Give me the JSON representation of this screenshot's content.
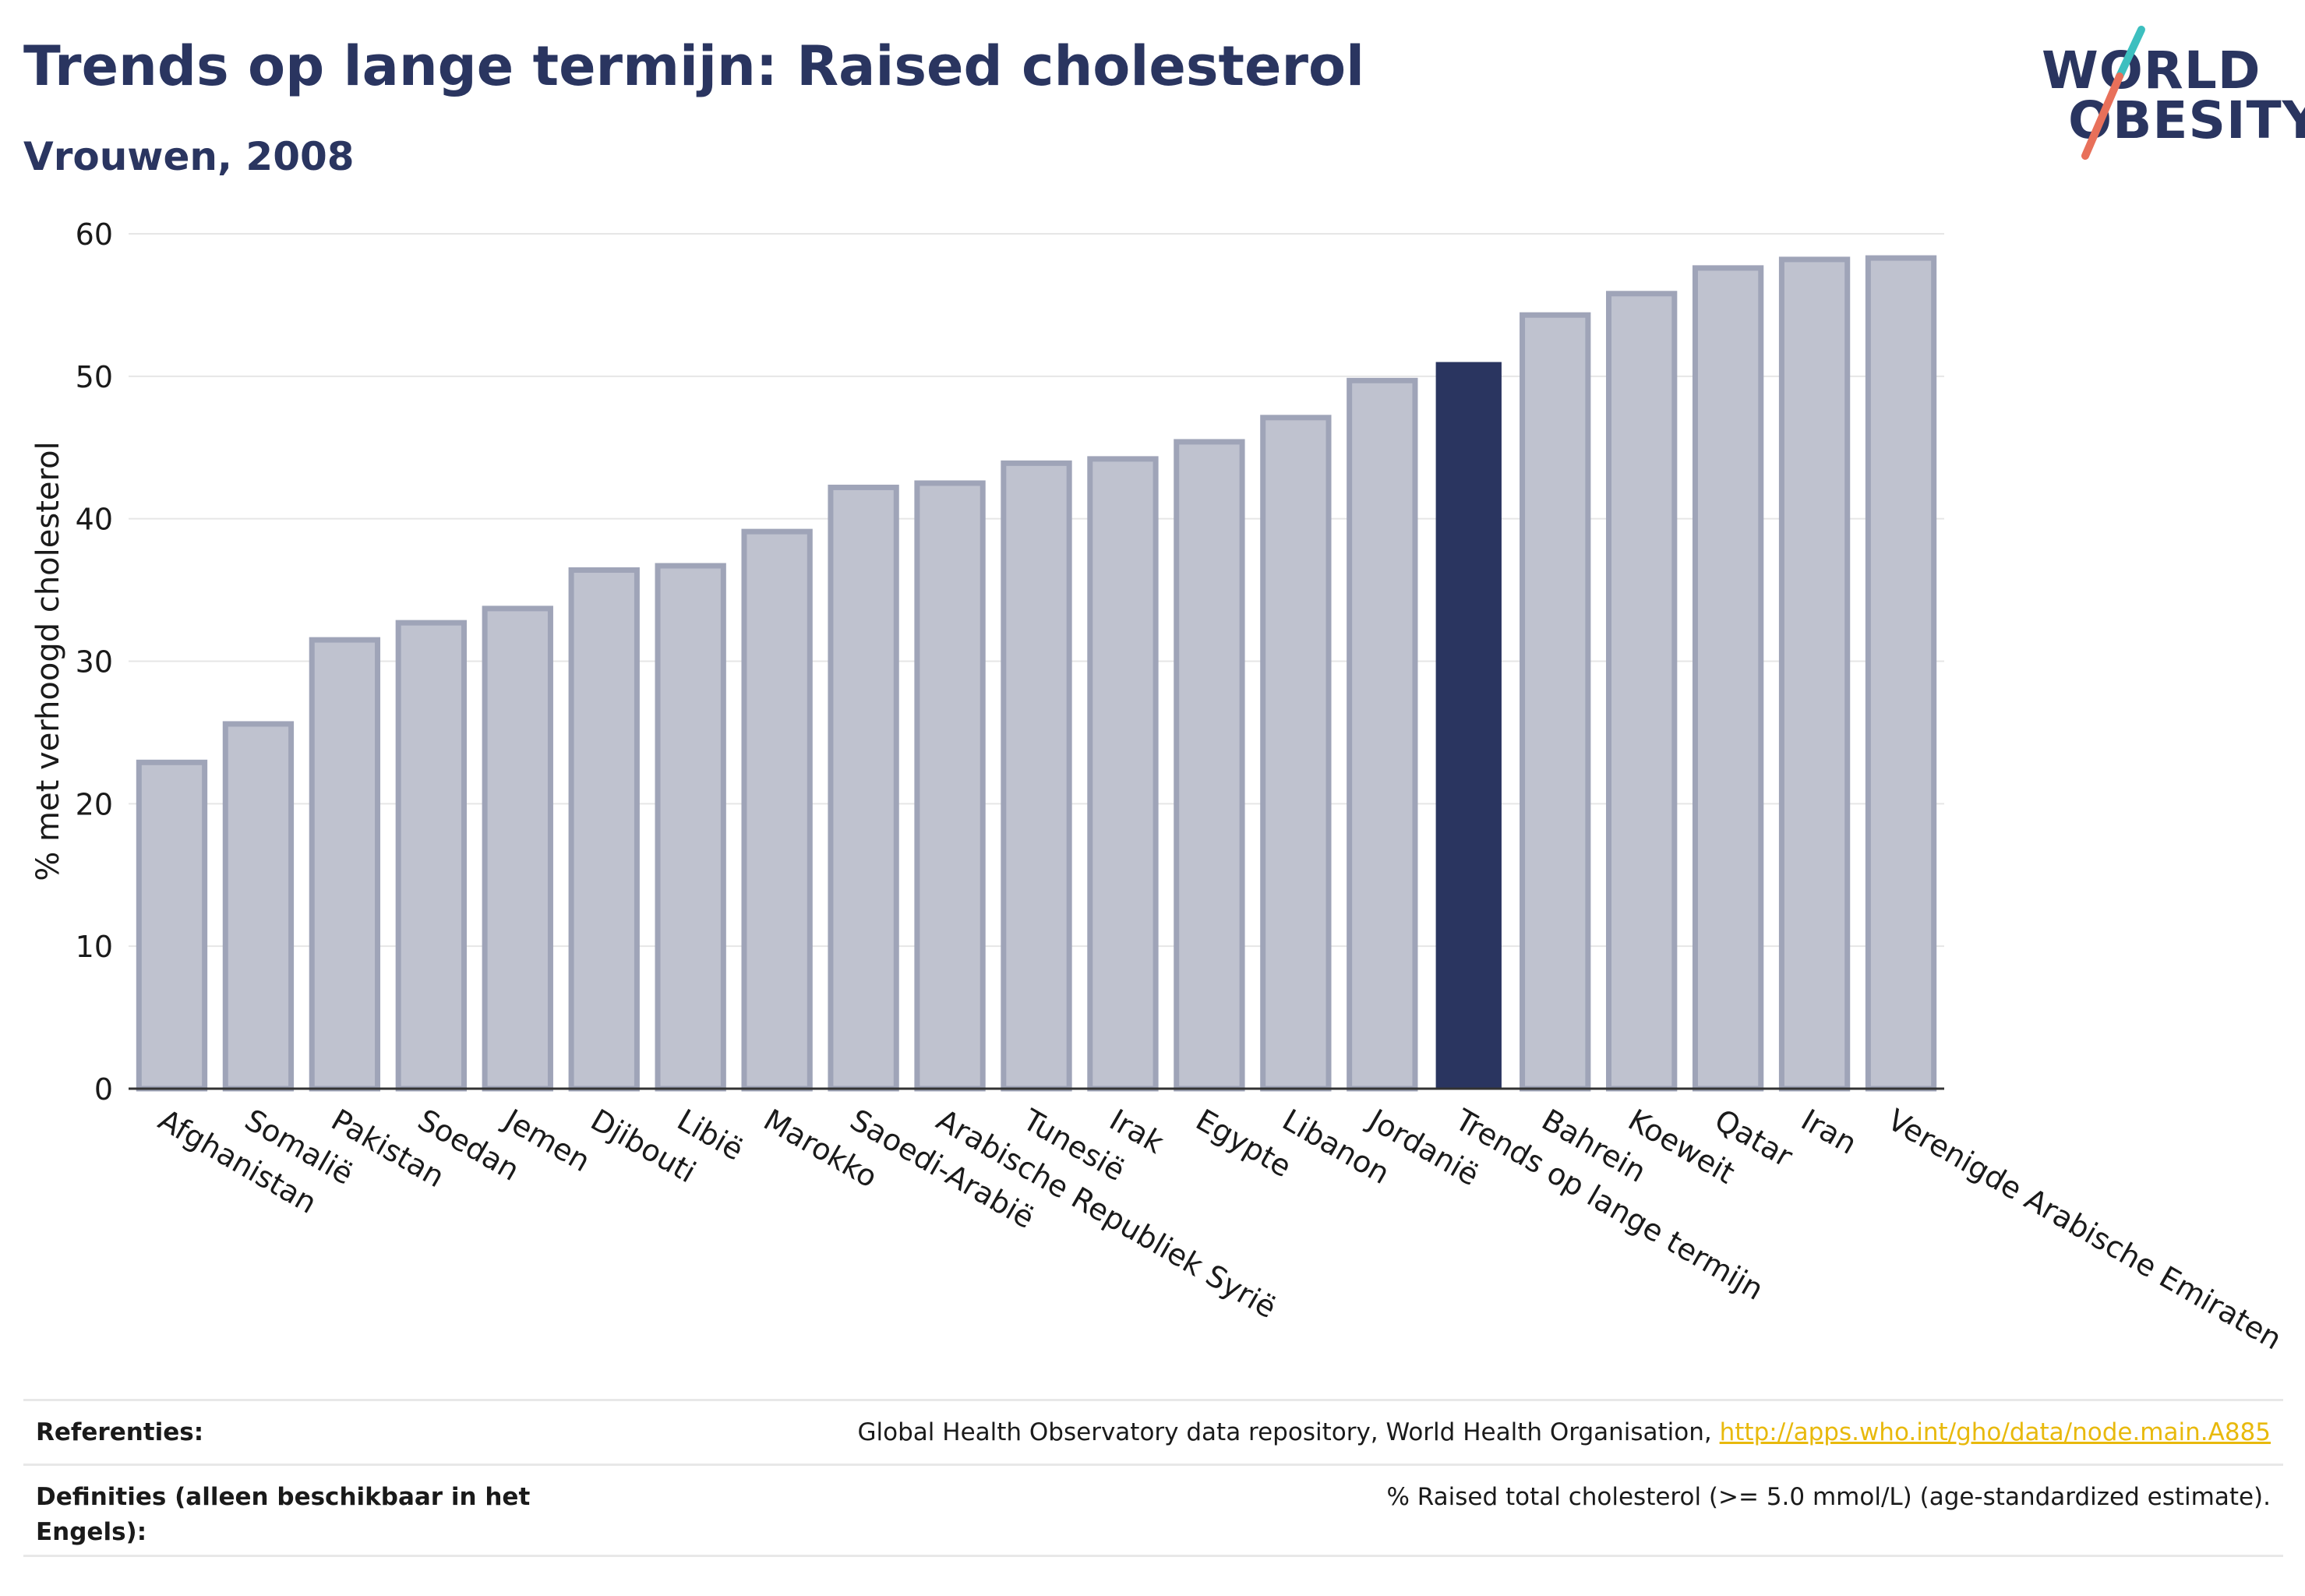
{
  "title": "Trends op lange termijn: Raised cholesterol",
  "subtitle": "Vrouwen, 2008",
  "logo": {
    "line1": "WORLD",
    "line2": "OBESITY",
    "accent_teal": "#3dbfbf",
    "accent_coral": "#e8705a"
  },
  "footer": {
    "references_label": "Referenties:",
    "references_text": "Global Health Observatory data repository, World Health Organisation, ",
    "references_link": "http://apps.who.int/gho/data/node.main.A885",
    "definitions_label": "Definities (alleen beschikbaar in het Engels):",
    "definitions_text": "% Raised total cholesterol (>= 5.0 mmol/L) (age-standardized estimate)."
  },
  "chart_data": {
    "type": "bar",
    "ylabel": "% met verhoogd cholesterol",
    "ylim": [
      0,
      60
    ],
    "yticks": [
      0,
      10,
      20,
      30,
      40,
      50,
      60
    ],
    "grid": true,
    "categories": [
      "Afghanistan",
      "Somalië",
      "Pakistan",
      "Soedan",
      "Jemen",
      "Djibouti",
      "Libië",
      "Marokko",
      "Saoedi-Arabië",
      "Arabische Republiek Syrië",
      "Tunesië",
      "Irak",
      "Egypte",
      "Libanon",
      "Jordanië",
      "Trends op lange termijn",
      "Bahrein",
      "Koeweit",
      "Qatar",
      "Iran",
      "Verenigde Arabische Emiraten"
    ],
    "values": [
      22.9,
      25.6,
      31.5,
      32.7,
      33.7,
      36.4,
      36.7,
      39.1,
      42.2,
      42.5,
      43.9,
      44.2,
      45.4,
      47.1,
      49.7,
      51.0,
      54.3,
      55.8,
      57.6,
      58.2,
      58.3
    ],
    "highlight": "Trends op lange termijn",
    "colors": {
      "bar": "#bfc2cf",
      "bar_edge": "#9fa4b8",
      "highlight": "#2a3560",
      "grid": "#e6e6e6",
      "axis": "#333333"
    }
  }
}
